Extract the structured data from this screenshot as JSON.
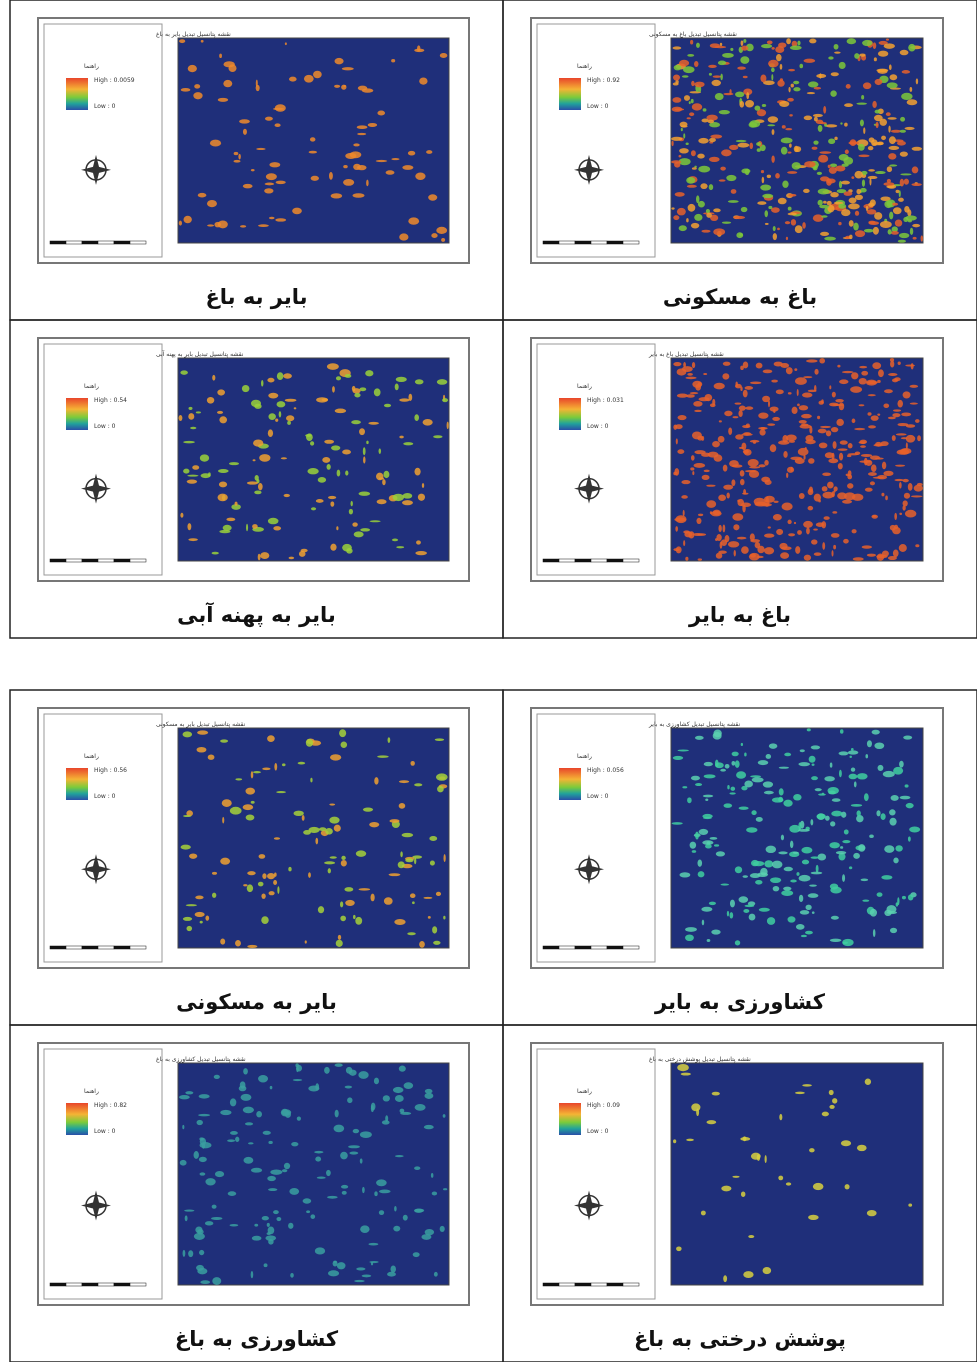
{
  "panels": [
    {
      "caption": "بایر به باغ",
      "map_title": "نقشه پتانسیل تبدیل بایر به باغ",
      "legend_title": "راهنما",
      "high": "High : 0.0059",
      "low": "Low : 0"
    },
    {
      "caption": "باغ به مسکونی",
      "map_title": "نقشه پتانسیل تبدیل باغ به مسکونی",
      "legend_title": "راهنما",
      "high": "High : 0.92",
      "low": "Low : 0"
    },
    {
      "caption": "بایر به پهنه آبی",
      "map_title": "نقشه پتانسیل تبدیل بایر به پهنه آبی",
      "legend_title": "راهنما",
      "high": "High : 0.54",
      "low": "Low : 0"
    },
    {
      "caption": "باغ به بایر",
      "map_title": "نقشه پتانسیل تبدیل باغ به بایر",
      "legend_title": "راهنما",
      "high": "High : 0.031",
      "low": "Low : 0"
    },
    {
      "caption": "بایر به مسکونی",
      "map_title": "نقشه پتانسیل تبدیل بایر به مسکونی",
      "legend_title": "راهنما",
      "high": "High : 0.56",
      "low": "Low : 0"
    },
    {
      "caption": "کشاورزی به بایر",
      "map_title": "نقشه پتانسیل تبدیل کشاورزی به بایر",
      "legend_title": "راهنما",
      "high": "High : 0.056",
      "low": "Low : 0"
    },
    {
      "caption": "کشاورزی به باغ",
      "map_title": "نقشه پتانسیل تبدیل کشاورزی به باغ",
      "legend_title": "راهنما",
      "high": "High : 0.82",
      "low": "Low : 0"
    },
    {
      "caption": "پوشش درختی به باغ",
      "map_title": "نقشه پتانسیل تبدیل پوشش درختی به باغ",
      "legend_title": "راهنما",
      "high": "High : 0.09",
      "low": "Low : 0"
    }
  ]
}
